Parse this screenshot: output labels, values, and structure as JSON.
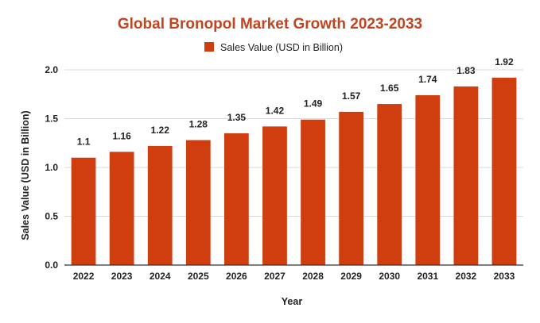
{
  "colors": {
    "bar": "#d03d0e",
    "title": "#c0441f",
    "grid": "#d9d9d9",
    "axis": "#333333"
  },
  "chart_data": {
    "type": "bar",
    "title": "Global Bronopol Market Growth 2023-2033",
    "xlabel": "Year",
    "ylabel": "Sales Value (USD in Billion)",
    "categories": [
      "2022",
      "2023",
      "2024",
      "2025",
      "2026",
      "2027",
      "2028",
      "2029",
      "2030",
      "2031",
      "2032",
      "2033"
    ],
    "series": [
      {
        "name": "Sales Value (USD in Billion)",
        "values": [
          1.1,
          1.16,
          1.22,
          1.28,
          1.35,
          1.42,
          1.49,
          1.57,
          1.65,
          1.74,
          1.83,
          1.92
        ],
        "labels": [
          "1.1",
          "1.16",
          "1.22",
          "1.28",
          "1.35",
          "1.42",
          "1.49",
          "1.57",
          "1.65",
          "1.74",
          "1.83",
          "1.92"
        ]
      }
    ],
    "ylim": [
      0,
      2.0
    ],
    "yticks": [
      "0.0",
      "0.5",
      "1.0",
      "1.5",
      "2.0"
    ],
    "grid": true,
    "legend_position": "top"
  }
}
